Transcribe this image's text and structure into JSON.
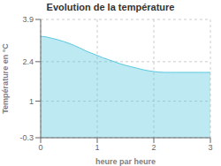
{
  "chart_data": {
    "type": "area",
    "title": "Evolution de la température",
    "xlabel": "heure par heure",
    "ylabel": "Température en °C",
    "x": [
      0,
      0.1,
      0.2,
      0.3,
      0.4,
      0.5,
      0.6,
      0.7,
      0.8,
      0.9,
      1.0,
      1.1,
      1.2,
      1.3,
      1.4,
      1.5,
      1.6,
      1.7,
      1.8,
      1.9,
      2.0,
      2.1,
      2.2,
      2.3,
      2.4,
      2.5,
      2.6,
      2.7,
      2.8,
      2.9,
      3.0
    ],
    "values": [
      3.3,
      3.28,
      3.23,
      3.18,
      3.12,
      3.05,
      2.97,
      2.88,
      2.78,
      2.7,
      2.62,
      2.54,
      2.47,
      2.4,
      2.33,
      2.27,
      2.22,
      2.17,
      2.12,
      2.08,
      2.05,
      2.03,
      2.02,
      2.02,
      2.02,
      2.02,
      2.02,
      2.02,
      2.02,
      2.02,
      2.02
    ],
    "color": "#5bc8e0",
    "xlim": [
      0,
      3
    ],
    "ylim": [
      -0.3,
      3.9
    ],
    "xticks": [
      0,
      1,
      2,
      3
    ],
    "yticks": [
      -0.3,
      1,
      2.4,
      3.9
    ],
    "grid": true
  }
}
